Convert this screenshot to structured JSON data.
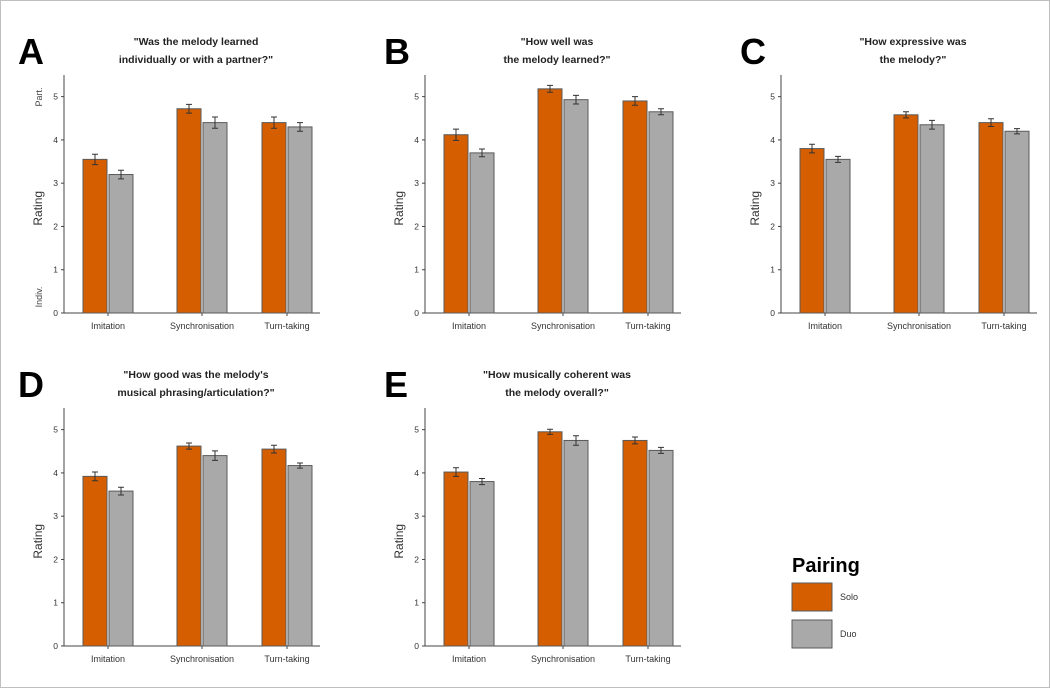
{
  "chart_data": [
    {
      "type": "bar",
      "panel": "A",
      "title_lines": [
        "\"Was the melody learned",
        "individually or with a partner?\""
      ],
      "xlabel": "",
      "ylabel": "Rating",
      "ylim": [
        0,
        5.5
      ],
      "y_ticks": [
        0,
        1,
        2,
        3,
        4,
        5
      ],
      "y_anchor_top": "Part.",
      "y_anchor_bottom": "Indiv.",
      "categories": [
        "Imitation",
        "Synchronisation",
        "Turn-taking"
      ],
      "series": [
        {
          "name": "Solo",
          "values": [
            3.55,
            4.72,
            4.4
          ],
          "errors": [
            0.12,
            0.1,
            0.13
          ]
        },
        {
          "name": "Duo",
          "values": [
            3.2,
            4.4,
            4.3
          ],
          "errors": [
            0.1,
            0.13,
            0.1
          ]
        }
      ]
    },
    {
      "type": "bar",
      "panel": "B",
      "title_lines": [
        "\"How well was",
        "the melody learned?\""
      ],
      "xlabel": "",
      "ylabel": "Rating",
      "ylim": [
        0,
        5.5
      ],
      "y_ticks": [
        0,
        1,
        2,
        3,
        4,
        5
      ],
      "categories": [
        "Imitation",
        "Synchronisation",
        "Turn-taking"
      ],
      "series": [
        {
          "name": "Solo",
          "values": [
            4.12,
            5.18,
            4.9
          ],
          "errors": [
            0.13,
            0.08,
            0.1
          ]
        },
        {
          "name": "Duo",
          "values": [
            3.7,
            4.93,
            4.65
          ],
          "errors": [
            0.09,
            0.1,
            0.07
          ]
        }
      ]
    },
    {
      "type": "bar",
      "panel": "C",
      "title_lines": [
        "\"How expressive was",
        "the melody?\""
      ],
      "xlabel": "",
      "ylabel": "Rating",
      "ylim": [
        0,
        5.5
      ],
      "y_ticks": [
        0,
        1,
        2,
        3,
        4,
        5
      ],
      "categories": [
        "Imitation",
        "Synchronisation",
        "Turn-taking"
      ],
      "series": [
        {
          "name": "Solo",
          "values": [
            3.8,
            4.58,
            4.4
          ],
          "errors": [
            0.1,
            0.07,
            0.09
          ]
        },
        {
          "name": "Duo",
          "values": [
            3.55,
            4.35,
            4.2
          ],
          "errors": [
            0.07,
            0.1,
            0.06
          ]
        }
      ]
    },
    {
      "type": "bar",
      "panel": "D",
      "title_lines": [
        "\"How good was the melody's",
        "musical phrasing/articulation?\""
      ],
      "xlabel": "",
      "ylabel": "Rating",
      "ylim": [
        0,
        5.5
      ],
      "y_ticks": [
        0,
        1,
        2,
        3,
        4,
        5
      ],
      "categories": [
        "Imitation",
        "Synchronisation",
        "Turn-taking"
      ],
      "series": [
        {
          "name": "Solo",
          "values": [
            3.92,
            4.62,
            4.55
          ],
          "errors": [
            0.1,
            0.07,
            0.09
          ]
        },
        {
          "name": "Duo",
          "values": [
            3.58,
            4.4,
            4.17
          ],
          "errors": [
            0.09,
            0.11,
            0.06
          ]
        }
      ]
    },
    {
      "type": "bar",
      "panel": "E",
      "title_lines": [
        "\"How musically coherent was",
        "the melody overall?\""
      ],
      "xlabel": "",
      "ylabel": "Rating",
      "ylim": [
        0,
        5.5
      ],
      "y_ticks": [
        0,
        1,
        2,
        3,
        4,
        5
      ],
      "categories": [
        "Imitation",
        "Synchronisation",
        "Turn-taking"
      ],
      "series": [
        {
          "name": "Solo",
          "values": [
            4.02,
            4.95,
            4.75
          ],
          "errors": [
            0.1,
            0.06,
            0.08
          ]
        },
        {
          "name": "Duo",
          "values": [
            3.8,
            4.75,
            4.52
          ],
          "errors": [
            0.07,
            0.11,
            0.07
          ]
        }
      ]
    }
  ],
  "legend": {
    "title": "Pairing",
    "items": [
      {
        "label": "Solo",
        "color": "#d55e00"
      },
      {
        "label": "Duo",
        "color": "#a9a9a9"
      }
    ]
  },
  "colors": {
    "solo": "#d55e00",
    "duo": "#a9a9a9",
    "bar_edge": "#5a5a5a",
    "axis": "#444444"
  }
}
